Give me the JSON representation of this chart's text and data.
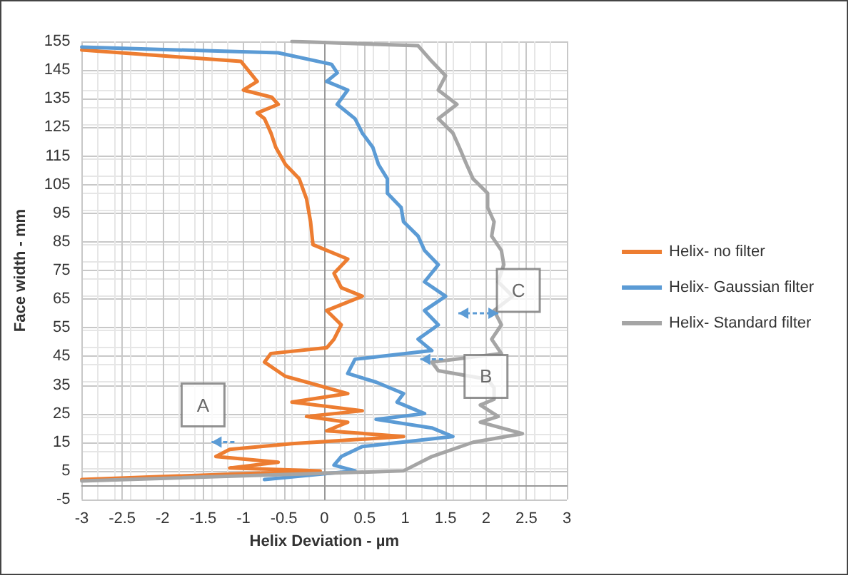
{
  "chart_data": {
    "type": "line",
    "xlabel": "Helix Deviation - µm",
    "ylabel": "Face width - mm",
    "xlim": [
      -3,
      3
    ],
    "xticks": [
      -3,
      -2.5,
      -2,
      -1.5,
      -1,
      -0.5,
      0,
      0.5,
      1,
      1.5,
      2,
      2.5,
      3
    ],
    "ylim": [
      -5,
      155
    ],
    "yticks": [
      -5,
      5,
      15,
      25,
      35,
      45,
      55,
      65,
      75,
      85,
      95,
      105,
      115,
      125,
      135,
      145,
      155
    ],
    "grid": true,
    "legend": "right",
    "marker": "none",
    "line_style": "solid",
    "annotations": [
      {
        "text": "A",
        "x": -1.5,
        "y": 28
      },
      {
        "text": "B",
        "x": 2.0,
        "y": 38
      },
      {
        "text": "C",
        "x": 2.4,
        "y": 68
      }
    ],
    "series": [
      {
        "name": "Helix- no filter",
        "color": "#ed7d31",
        "x": [
          -3,
          -1.03,
          -0.83,
          -1.0,
          -0.65,
          -0.57,
          -0.83,
          -0.74,
          -0.66,
          -0.6,
          -0.48,
          -0.31,
          -0.22,
          -0.17,
          -0.14,
          0.29,
          0.12,
          0.21,
          0.47,
          0.03,
          0.21,
          0.12,
          0.03,
          -0.66,
          -0.74,
          -0.48,
          -0.22,
          0.29,
          -0.4,
          0.47,
          -0.22,
          0.29,
          0.03,
          0.98,
          -0.4,
          -1.17,
          -1.34,
          -0.57,
          -1.17,
          -0.05,
          -3
        ],
        "values": [
          152,
          148,
          141,
          138,
          135.5,
          133,
          130,
          128,
          123,
          118,
          112,
          107,
          100,
          92,
          84,
          79,
          74,
          69,
          66,
          61,
          56,
          51,
          48,
          46,
          43,
          38,
          36,
          32,
          29,
          26,
          24,
          22,
          19,
          17,
          14.5,
          12.5,
          10,
          8,
          6,
          5,
          2
        ]
      },
      {
        "name": "Helix- Gaussian filter",
        "color": "#5b9bd5",
        "x": [
          -3,
          -0.57,
          0.09,
          0.16,
          0.03,
          0.29,
          0.16,
          0.38,
          0.47,
          0.6,
          0.67,
          0.78,
          0.78,
          0.95,
          0.98,
          1.16,
          1.24,
          1.41,
          1.24,
          1.5,
          1.24,
          1.41,
          1.16,
          1.33,
          0.38,
          0.29,
          0.64,
          0.98,
          0.9,
          1.24,
          0.64,
          1.33,
          1.59,
          0.47,
          0.21,
          0.12,
          0.38,
          -0.74
        ],
        "values": [
          153,
          151,
          147,
          144,
          141,
          138,
          133,
          128,
          123,
          118,
          112,
          107,
          102,
          97,
          92,
          87,
          82,
          77,
          71,
          66,
          61,
          56,
          51,
          47,
          44,
          39,
          36,
          32,
          29,
          25,
          23,
          20,
          17,
          13.5,
          10,
          7,
          5,
          2
        ]
      },
      {
        "name": "Helix- Standard filter",
        "color": "#a5a5a5",
        "x": [
          -0.4,
          1.16,
          1.33,
          1.5,
          1.41,
          1.64,
          1.41,
          1.59,
          1.67,
          1.76,
          1.84,
          2.02,
          2.02,
          2.1,
          2.07,
          2.19,
          2.22,
          2.15,
          2.33,
          2.1,
          2.19,
          2.07,
          2.19,
          1.33,
          1.41,
          2.02,
          2.1,
          2.1,
          1.93,
          2.15,
          1.93,
          2.45,
          1.84,
          1.33,
          0.98,
          -3
        ],
        "values": [
          155,
          153.5,
          148,
          143,
          138,
          133,
          128,
          123,
          118,
          112,
          107,
          102,
          97,
          92,
          87,
          82,
          77,
          71,
          66,
          61,
          56,
          51,
          46,
          43,
          40,
          37,
          34,
          30,
          28,
          24,
          22,
          18,
          15,
          10,
          5,
          1.5
        ]
      }
    ]
  }
}
